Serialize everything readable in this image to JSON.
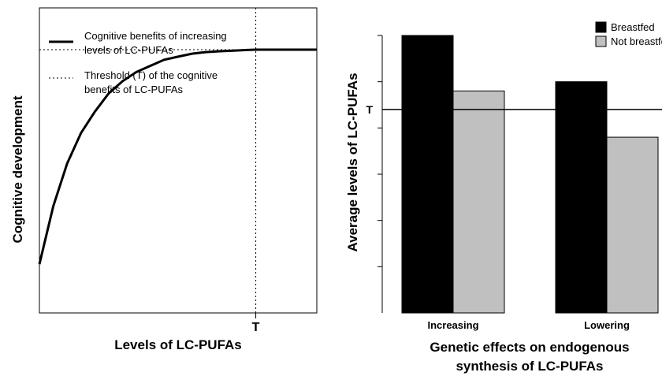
{
  "chart_data": [
    {
      "type": "line",
      "xlabel": "Levels of LC-PUFAs",
      "ylabel": "Cognitive development",
      "x_tick_labels": [
        {
          "x": 0.78,
          "label": "T"
        }
      ],
      "threshold_x": 0.78,
      "xlim": [
        0,
        1
      ],
      "ylim": [
        0,
        1
      ],
      "grid": false,
      "legend_position": "top-left",
      "series": [
        {
          "name": "Cognitive benefits of increasing levels of LC-PUFAs",
          "style": "solid",
          "x": [
            0,
            0.05,
            0.1,
            0.15,
            0.2,
            0.25,
            0.3,
            0.35,
            0.4,
            0.45,
            0.5,
            0.55,
            0.6,
            0.65,
            0.7,
            0.75,
            0.78,
            0.85,
            0.9,
            1.0
          ],
          "y": [
            0.16,
            0.35,
            0.49,
            0.59,
            0.66,
            0.72,
            0.76,
            0.79,
            0.81,
            0.83,
            0.84,
            0.85,
            0.855,
            0.858,
            0.86,
            0.862,
            0.863,
            0.863,
            0.863,
            0.863
          ]
        },
        {
          "name": "Threshold (T) of the cognitive benefits of LC-PUFAs",
          "style": "dotted",
          "y_level": 0.863
        }
      ],
      "legend": [
        "Cognitive benefits of increasing levels of LC-PUFAs",
        "Threshold (T) of the cognitive benefits of LC-PUFAs"
      ],
      "legend_lines": [
        [
          "Cognitive benefits of increasing",
          "levels of LC-PUFAs"
        ],
        [
          "Threshold (T) of the cognitive",
          "benefits of LC-PUFAs"
        ]
      ]
    },
    {
      "type": "bar",
      "categories": [
        "Increasing",
        "Lowering"
      ],
      "series": [
        {
          "name": "Breastfed",
          "color": "#000000",
          "values": [
            6.0,
            5.0
          ]
        },
        {
          "name": "Not breastfed",
          "color": "#c0c0c0",
          "values": [
            4.8,
            3.8
          ]
        }
      ],
      "threshold": 4.4,
      "threshold_label": "T",
      "ylim": [
        0,
        6
      ],
      "y_ticks": [
        1,
        2,
        3,
        4,
        5,
        6
      ],
      "xlabel": "Genetic effects on endogenous synthesis of LC-PUFAs",
      "xlabel_lines": [
        "Genetic effects on endogenous",
        "synthesis of LC-PUFAs"
      ],
      "ylabel": "Average levels of LC-PUFAs",
      "legend_position": "top-right",
      "grid": false
    }
  ]
}
